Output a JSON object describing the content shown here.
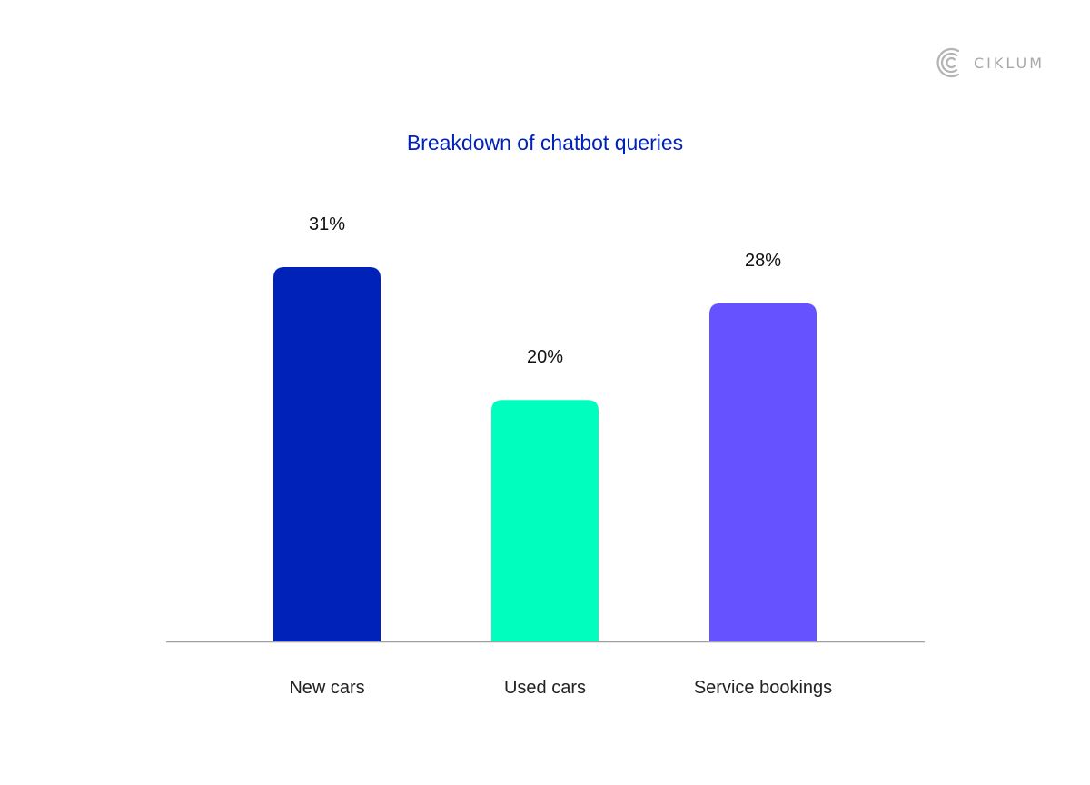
{
  "brand": {
    "name": "CIKLUM",
    "logo_icon": "ciklum-c-logo-icon",
    "color": "#a8a8a8"
  },
  "chart_data": {
    "type": "bar",
    "title": "Breakdown of chatbot queries",
    "categories": [
      "New cars",
      "Used cars",
      "Service bookings"
    ],
    "values": [
      31,
      20,
      28
    ],
    "value_labels": [
      "31%",
      "20%",
      "28%"
    ],
    "colors": [
      "#0022b8",
      "#00ffbe",
      "#6652ff"
    ],
    "xlabel": "",
    "ylabel": "",
    "ylim": [
      0,
      31
    ],
    "grid": false,
    "legend": "none"
  }
}
